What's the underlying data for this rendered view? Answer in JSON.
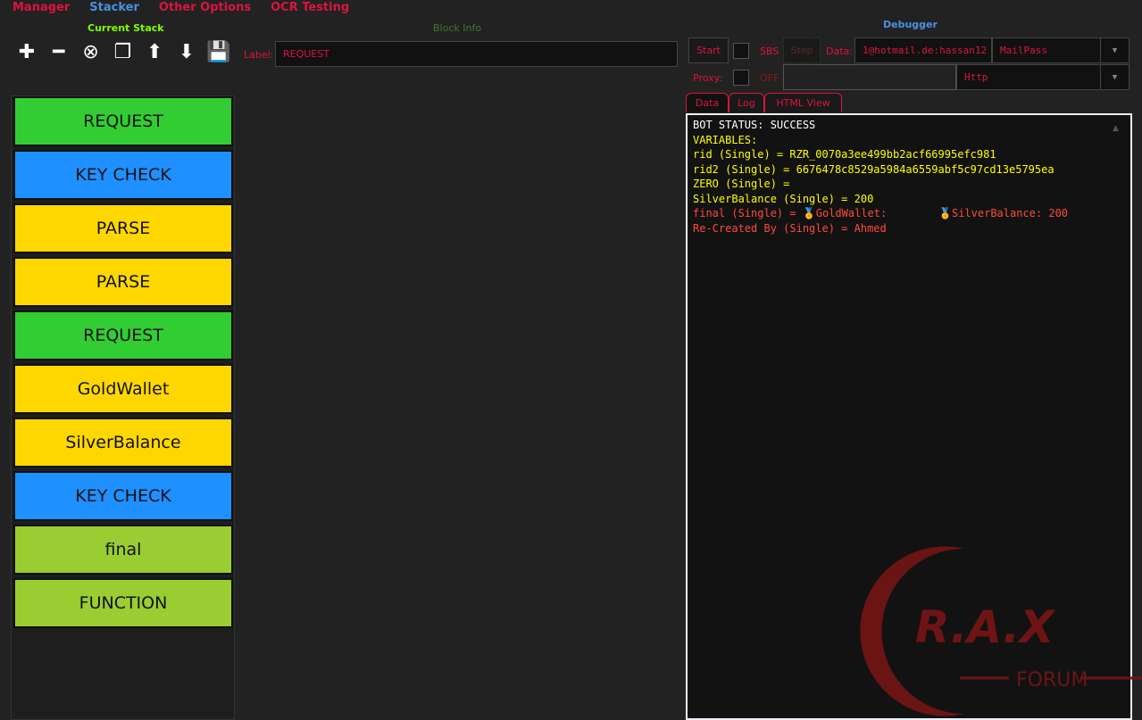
{
  "topnav": [
    "Manager",
    "Stacker",
    "Other Options",
    "OCR Testing"
  ],
  "stack": {
    "title": "Current Stack",
    "tools": [
      {
        "name": "add-icon",
        "glyph": "✚"
      },
      {
        "name": "remove-icon",
        "glyph": "━"
      },
      {
        "name": "clear-icon",
        "glyph": "⊗"
      },
      {
        "name": "clone-icon",
        "glyph": "❐"
      },
      {
        "name": "move-up-icon",
        "glyph": "⬆"
      },
      {
        "name": "move-down-icon",
        "glyph": "⬇"
      },
      {
        "name": "save-icon",
        "glyph": "💾"
      }
    ],
    "blocks": [
      {
        "label": "REQUEST",
        "color": "#32cd32"
      },
      {
        "label": "KEY CHECK",
        "color": "#1e90ff"
      },
      {
        "label": "PARSE",
        "color": "#ffd700"
      },
      {
        "label": "PARSE",
        "color": "#ffd700"
      },
      {
        "label": "REQUEST",
        "color": "#32cd32"
      },
      {
        "label": "GoldWallet",
        "color": "#ffd700"
      },
      {
        "label": "SilverBalance",
        "color": "#ffd700"
      },
      {
        "label": "KEY CHECK",
        "color": "#1e90ff"
      },
      {
        "label": "final",
        "color": "#9acd32"
      },
      {
        "label": "FUNCTION",
        "color": "#9acd32"
      }
    ]
  },
  "blockinfo": {
    "title": "Block Info",
    "label_caption": "Label:",
    "label_value": "REQUEST"
  },
  "debugger": {
    "title": "Debugger",
    "start": "Start",
    "sbs": "SBS",
    "step": "Step",
    "data_caption": "Data:",
    "data_value": "1@hotmail.de:hassan12",
    "wordlist_type": "MailPass",
    "proxy_caption": "Proxy:",
    "proxy_state": "OFF",
    "proxy_value": "",
    "proxy_type": "Http",
    "tabs": [
      "Data",
      "Log",
      "HTML View"
    ],
    "output": [
      {
        "text": "BOT STATUS: SUCCESS",
        "color": "#ffffff"
      },
      {
        "text": "VARIABLES:",
        "color": "#ffff00"
      },
      {
        "text": "rid (Single) = RZR_0070a3ee499bb2acf66995efc981",
        "color": "#ffff00"
      },
      {
        "text": "rid2 (Single) = 6676478c8529a5984a6559abf5c97cd13e5795ea",
        "color": "#ffff00"
      },
      {
        "text": "ZERO (Single) =",
        "color": "#ffff00"
      },
      {
        "text": "SilverBalance (Single) = 200",
        "color": "#ffff00"
      },
      {
        "text": "final (Single) = 🏅GoldWallet:        🏅SilverBalance: 200",
        "color": "#ff4a3a"
      },
      {
        "text": "Re-Created By (Single) = Ahmed",
        "color": "#ff4a3a"
      }
    ]
  },
  "watermark": {
    "text1": "RAX",
    "text2": "FORUM",
    "color": "#7a1515"
  }
}
